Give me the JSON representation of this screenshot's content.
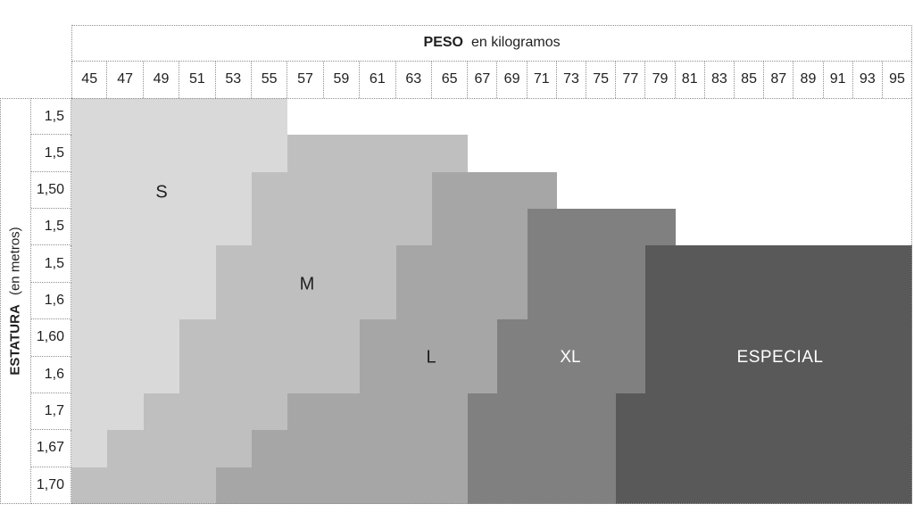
{
  "header": {
    "peso": "PESO",
    "peso_units": "en kilogramos"
  },
  "y_axis": {
    "title": "ESTATURA",
    "units": "(en metros)"
  },
  "sizes": [
    {
      "id": "S",
      "label": "S",
      "color": "#d9d9d9",
      "text_color": "#1f1f1f"
    },
    {
      "id": "M",
      "label": "M",
      "color": "#bfbfbf",
      "text_color": "#1f1f1f"
    },
    {
      "id": "L",
      "label": "L",
      "color": "#a6a6a6",
      "text_color": "#1f1f1f"
    },
    {
      "id": "XL",
      "label": "XL",
      "color": "#808080",
      "text_color": "#ffffff"
    },
    {
      "id": "ESPECIAL",
      "label": "ESPECIAL",
      "color": "#595959",
      "text_color": "#ffffff"
    }
  ],
  "chart_data": {
    "type": "heatmap",
    "title": "PESO en kilogramos",
    "x_label": "PESO en kilogramos",
    "y_label": "ESTATURA (en metros)",
    "legend_position": "in-region-labels",
    "grid": false,
    "weights_kg": [
      45,
      47,
      49,
      51,
      53,
      55,
      57,
      59,
      61,
      63,
      65,
      67,
      69,
      71,
      73,
      75,
      77,
      79,
      81,
      83,
      85,
      87,
      89,
      91,
      93,
      95
    ],
    "heights_m_display": [
      "1,5",
      "1,5",
      "1,50",
      "1,5",
      "1,5",
      "1,6",
      "1,60",
      "1,6",
      "1,7",
      "1,67",
      "1,70"
    ],
    "regions": [
      {
        "row": 0,
        "segments": [
          {
            "size": "S",
            "from": 0,
            "to": 5
          }
        ]
      },
      {
        "row": 1,
        "segments": [
          {
            "size": "S",
            "from": 0,
            "to": 5
          },
          {
            "size": "M",
            "from": 6,
            "to": 10
          }
        ]
      },
      {
        "row": 2,
        "segments": [
          {
            "size": "S",
            "from": 0,
            "to": 4
          },
          {
            "size": "M",
            "from": 5,
            "to": 9
          },
          {
            "size": "L",
            "from": 10,
            "to": 13
          }
        ]
      },
      {
        "row": 3,
        "segments": [
          {
            "size": "S",
            "from": 0,
            "to": 4
          },
          {
            "size": "M",
            "from": 5,
            "to": 9
          },
          {
            "size": "L",
            "from": 10,
            "to": 12
          },
          {
            "size": "XL",
            "from": 13,
            "to": 17
          }
        ]
      },
      {
        "row": 4,
        "segments": [
          {
            "size": "S",
            "from": 0,
            "to": 3
          },
          {
            "size": "M",
            "from": 4,
            "to": 8
          },
          {
            "size": "L",
            "from": 9,
            "to": 12
          },
          {
            "size": "XL",
            "from": 13,
            "to": 16
          },
          {
            "size": "ESPECIAL",
            "from": 17,
            "to": 25
          }
        ]
      },
      {
        "row": 5,
        "segments": [
          {
            "size": "S",
            "from": 0,
            "to": 3
          },
          {
            "size": "M",
            "from": 4,
            "to": 8
          },
          {
            "size": "L",
            "from": 9,
            "to": 12
          },
          {
            "size": "XL",
            "from": 13,
            "to": 16
          },
          {
            "size": "ESPECIAL",
            "from": 17,
            "to": 25
          }
        ]
      },
      {
        "row": 6,
        "segments": [
          {
            "size": "S",
            "from": 0,
            "to": 2
          },
          {
            "size": "M",
            "from": 3,
            "to": 7
          },
          {
            "size": "L",
            "from": 8,
            "to": 11
          },
          {
            "size": "XL",
            "from": 12,
            "to": 16
          },
          {
            "size": "ESPECIAL",
            "from": 17,
            "to": 25
          }
        ]
      },
      {
        "row": 7,
        "segments": [
          {
            "size": "S",
            "from": 0,
            "to": 2
          },
          {
            "size": "M",
            "from": 3,
            "to": 7
          },
          {
            "size": "L",
            "from": 8,
            "to": 11
          },
          {
            "size": "XL",
            "from": 12,
            "to": 16
          },
          {
            "size": "ESPECIAL",
            "from": 17,
            "to": 25
          }
        ]
      },
      {
        "row": 8,
        "segments": [
          {
            "size": "S",
            "from": 0,
            "to": 1
          },
          {
            "size": "M",
            "from": 2,
            "to": 5
          },
          {
            "size": "L",
            "from": 6,
            "to": 10
          },
          {
            "size": "XL",
            "from": 11,
            "to": 15
          },
          {
            "size": "ESPECIAL",
            "from": 16,
            "to": 25
          }
        ]
      },
      {
        "row": 9,
        "segments": [
          {
            "size": "S",
            "from": 0,
            "to": 0
          },
          {
            "size": "M",
            "from": 1,
            "to": 4
          },
          {
            "size": "L",
            "from": 5,
            "to": 10
          },
          {
            "size": "XL",
            "from": 11,
            "to": 15
          },
          {
            "size": "ESPECIAL",
            "from": 16,
            "to": 25
          }
        ]
      },
      {
        "row": 10,
        "segments": [
          {
            "size": "M",
            "from": 0,
            "to": 3
          },
          {
            "size": "L",
            "from": 4,
            "to": 10
          },
          {
            "size": "XL",
            "from": 11,
            "to": 15
          },
          {
            "size": "ESPECIAL",
            "from": 16,
            "to": 25
          }
        ]
      }
    ]
  }
}
